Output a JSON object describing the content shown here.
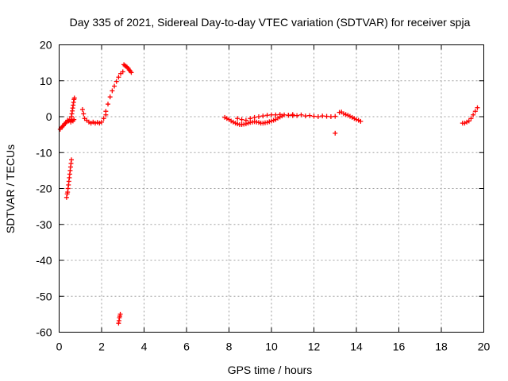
{
  "chart_data": {
    "type": "scatter",
    "title": "Day 335 of 2021, Sidereal Day-to-day VTEC variation (SDTVAR) for receiver spja",
    "xlabel": "GPS time / hours",
    "ylabel": "SDTVAR / TECUs",
    "xlim": [
      0,
      20
    ],
    "ylim": [
      -60,
      20
    ],
    "xticks": [
      0,
      2,
      4,
      6,
      8,
      10,
      12,
      14,
      16,
      18,
      20
    ],
    "yticks": [
      -60,
      -50,
      -40,
      -30,
      -20,
      -10,
      0,
      10,
      20
    ],
    "grid": true,
    "marker": "+",
    "color": "#ff0000",
    "segments": [
      {
        "x": [
          0.05,
          0.1,
          0.15,
          0.2,
          0.25,
          0.3,
          0.35,
          0.4,
          0.45,
          0.5,
          0.55,
          0.6,
          0.65,
          0.7
        ],
        "y": [
          -3.5,
          -3,
          -2.8,
          -2.5,
          -2,
          -1.8,
          -1.5,
          -1,
          -1.2,
          -0.8,
          -1.5,
          -1,
          -1.2,
          -0.8
        ]
      },
      {
        "x": [
          0.58,
          0.6,
          0.62,
          0.64,
          0.66,
          0.68,
          0.7,
          0.72
        ],
        "y": [
          0,
          0.8,
          1.6,
          2.4,
          3.2,
          4,
          4.8,
          5.2
        ]
      },
      {
        "x": [
          0.35,
          0.38,
          0.4,
          0.42,
          0.44,
          0.46,
          0.48,
          0.5,
          0.52,
          0.54,
          0.56,
          0.58
        ],
        "y": [
          -22.5,
          -21.5,
          -21,
          -20,
          -19,
          -18,
          -17,
          -16,
          -15,
          -14,
          -13,
          -12
        ]
      },
      {
        "x": [
          1.1,
          1.15,
          1.2,
          1.3,
          1.4,
          1.5,
          1.6,
          1.7,
          1.8,
          1.9,
          2.0,
          2.1,
          2.2
        ],
        "y": [
          2,
          0.8,
          -0.5,
          -1,
          -1.5,
          -1.8,
          -1.5,
          -1.8,
          -1.6,
          -1.8,
          -1.5,
          -0.5,
          0.5
        ]
      },
      {
        "x": [
          2.2,
          2.3,
          2.4,
          2.5,
          2.6,
          2.7,
          2.8,
          2.9,
          3.0
        ],
        "y": [
          1.5,
          3.5,
          5.5,
          7.2,
          8.5,
          9.8,
          11,
          12,
          12.5
        ]
      },
      {
        "x": [
          3.05,
          3.1,
          3.15,
          3.2,
          3.25,
          3.3,
          3.35,
          3.4
        ],
        "y": [
          14.5,
          14.2,
          14,
          13.8,
          13.5,
          13,
          12.7,
          12.3
        ]
      },
      {
        "x": [
          2.8,
          2.82,
          2.84,
          2.86,
          2.88
        ],
        "y": [
          -57.5,
          -56.8,
          -56,
          -55.5,
          -55
        ]
      },
      {
        "x": [
          7.8,
          7.9,
          8.0,
          8.1,
          8.2,
          8.3,
          8.4,
          8.5,
          8.6,
          8.7,
          8.8,
          8.9,
          9.0,
          9.1,
          9.2,
          9.3,
          9.4,
          9.5,
          9.6,
          9.7,
          9.8,
          9.9,
          10.0,
          10.1,
          10.2,
          10.3,
          10.4,
          10.5
        ],
        "y": [
          -0.2,
          -0.5,
          -0.8,
          -1.2,
          -1.5,
          -1.8,
          -2,
          -2.2,
          -2.2,
          -2.1,
          -2,
          -1.8,
          -1.6,
          -1.5,
          -1.4,
          -1.5,
          -1.6,
          -1.8,
          -1.8,
          -1.7,
          -1.6,
          -1.4,
          -1.2,
          -1,
          -0.8,
          -0.4,
          -0.1,
          0.2
        ]
      },
      {
        "x": [
          8.4,
          8.6,
          8.8,
          9.0,
          9.2,
          9.4,
          9.6,
          9.8,
          10.0,
          10.2,
          10.4,
          10.6,
          10.8,
          11.0
        ],
        "y": [
          -0.5,
          -0.8,
          -1,
          -0.5,
          -0.2,
          0,
          0.2,
          0.4,
          0.5,
          0.5,
          0.6,
          0.5,
          0.4,
          0.3
        ]
      },
      {
        "x": [
          10.8,
          11.0,
          11.2,
          11.4,
          11.6,
          11.8,
          12.0,
          12.2,
          12.4,
          12.6,
          12.8,
          13.0
        ],
        "y": [
          0.4,
          0.6,
          0.3,
          0.5,
          0.2,
          0.3,
          0.1,
          0,
          0.2,
          0.1,
          0,
          0.1
        ]
      },
      {
        "x": [
          13.0
        ],
        "y": [
          -4.6
        ]
      },
      {
        "x": [
          13.2,
          13.3,
          13.4,
          13.5,
          13.6,
          13.7,
          13.8,
          13.9,
          14.0,
          14.1,
          14.2
        ],
        "y": [
          1.2,
          1.3,
          0.8,
          0.6,
          0.4,
          0.1,
          -0.2,
          -0.5,
          -0.8,
          -1,
          -1.3
        ]
      },
      {
        "x": [
          19.0,
          19.1,
          19.2,
          19.3,
          19.4,
          19.5,
          19.6,
          19.7
        ],
        "y": [
          -1.8,
          -1.8,
          -1.5,
          -1.2,
          -0.5,
          0.5,
          1.5,
          2.5
        ]
      }
    ]
  }
}
